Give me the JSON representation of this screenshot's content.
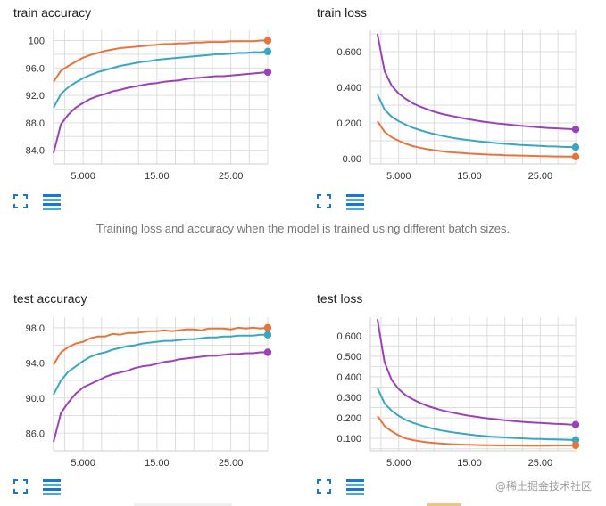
{
  "caption": "Training loss and accuracy when the model is trained using different batch sizes.",
  "watermark": "@稀土掘金技术社区",
  "icons": {
    "fullscreen": "fullscreen-icon",
    "menu": "menu-lines-icon"
  },
  "colors": {
    "orange": "#e8743b",
    "teal": "#3aa7c2",
    "purple": "#9c42b8",
    "grid": "#dddddd",
    "icon_blue": "#1976d2",
    "icon_teal": "#4aa9d9"
  },
  "chart_data": [
    {
      "id": "train-accuracy",
      "type": "line",
      "title": "train accuracy",
      "xlim": [
        1,
        30
      ],
      "ylim": [
        82,
        101.5
      ],
      "yticks": [
        100,
        96,
        92,
        88,
        84
      ],
      "ytick_labels": [
        "100",
        "96.0",
        "92.0",
        "88.0",
        "84.0"
      ],
      "xticks": [
        5,
        15,
        25
      ],
      "xtick_labels": [
        "5.000",
        "15.00",
        "25.00"
      ],
      "x": [
        1,
        2,
        3,
        4,
        5,
        6,
        7,
        8,
        9,
        10,
        11,
        12,
        13,
        14,
        15,
        16,
        17,
        18,
        19,
        20,
        21,
        22,
        23,
        24,
        25,
        26,
        27,
        28,
        29,
        30
      ],
      "series": [
        {
          "name": "orange",
          "color": "#e8743b",
          "values": [
            94.0,
            95.6,
            96.3,
            96.9,
            97.5,
            97.9,
            98.2,
            98.5,
            98.7,
            98.9,
            99.0,
            99.1,
            99.2,
            99.3,
            99.4,
            99.5,
            99.5,
            99.6,
            99.6,
            99.7,
            99.7,
            99.8,
            99.8,
            99.8,
            99.9,
            99.9,
            99.9,
            99.9,
            100.0,
            100.0
          ]
        },
        {
          "name": "teal",
          "color": "#3aa7c2",
          "values": [
            90.2,
            92.2,
            93.2,
            93.9,
            94.5,
            95.0,
            95.4,
            95.7,
            96.0,
            96.3,
            96.5,
            96.7,
            96.9,
            97.0,
            97.2,
            97.3,
            97.4,
            97.5,
            97.6,
            97.7,
            97.8,
            97.9,
            98.0,
            98.0,
            98.1,
            98.2,
            98.2,
            98.3,
            98.3,
            98.4
          ]
        },
        {
          "name": "purple",
          "color": "#9c42b8",
          "values": [
            83.6,
            87.8,
            89.2,
            90.2,
            90.9,
            91.5,
            91.9,
            92.2,
            92.6,
            92.8,
            93.1,
            93.3,
            93.5,
            93.7,
            93.8,
            94.0,
            94.1,
            94.2,
            94.4,
            94.5,
            94.6,
            94.7,
            94.8,
            94.8,
            94.9,
            95.0,
            95.1,
            95.2,
            95.3,
            95.4
          ]
        }
      ]
    },
    {
      "id": "train-loss",
      "type": "line",
      "title": "train loss",
      "xlim": [
        1,
        30
      ],
      "ylim": [
        -0.03,
        0.72
      ],
      "yticks": [
        0.6,
        0.4,
        0.2,
        0.0
      ],
      "ytick_labels": [
        "0.600",
        "0.400",
        "0.200",
        "0.00"
      ],
      "xticks": [
        5,
        15,
        25
      ],
      "xtick_labels": [
        "5.000",
        "15.00",
        "25.00"
      ],
      "x": [
        2,
        3,
        4,
        5,
        6,
        7,
        8,
        9,
        10,
        11,
        12,
        13,
        14,
        15,
        16,
        17,
        18,
        19,
        20,
        21,
        22,
        23,
        24,
        25,
        26,
        27,
        28,
        29,
        30
      ],
      "series": [
        {
          "name": "purple",
          "color": "#9c42b8",
          "values": [
            0.7,
            0.49,
            0.41,
            0.365,
            0.335,
            0.31,
            0.292,
            0.277,
            0.263,
            0.252,
            0.243,
            0.235,
            0.227,
            0.22,
            0.213,
            0.207,
            0.202,
            0.197,
            0.193,
            0.189,
            0.185,
            0.181,
            0.178,
            0.175,
            0.172,
            0.17,
            0.168,
            0.166,
            0.164
          ]
        },
        {
          "name": "teal",
          "color": "#3aa7c2",
          "values": [
            0.36,
            0.275,
            0.235,
            0.21,
            0.19,
            0.173,
            0.16,
            0.148,
            0.138,
            0.129,
            0.121,
            0.114,
            0.108,
            0.103,
            0.098,
            0.094,
            0.09,
            0.086,
            0.083,
            0.08,
            0.077,
            0.075,
            0.073,
            0.071,
            0.069,
            0.068,
            0.066,
            0.065,
            0.064
          ]
        },
        {
          "name": "orange",
          "color": "#e8743b",
          "values": [
            0.21,
            0.15,
            0.12,
            0.1,
            0.083,
            0.07,
            0.061,
            0.053,
            0.047,
            0.042,
            0.037,
            0.034,
            0.031,
            0.028,
            0.026,
            0.024,
            0.022,
            0.021,
            0.019,
            0.018,
            0.017,
            0.016,
            0.015,
            0.014,
            0.013,
            0.012,
            0.012,
            0.011,
            0.011
          ]
        }
      ]
    },
    {
      "id": "test-accuracy",
      "type": "line",
      "title": "test accuracy",
      "xlim": [
        1,
        30
      ],
      "ylim": [
        84,
        99.2
      ],
      "yticks": [
        98,
        94,
        90,
        86
      ],
      "ytick_labels": [
        "98.0",
        "94.0",
        "90.0",
        "86.0"
      ],
      "xticks": [
        5,
        15,
        25
      ],
      "xtick_labels": [
        "5.000",
        "15.00",
        "25.00"
      ],
      "x": [
        1,
        2,
        3,
        4,
        5,
        6,
        7,
        8,
        9,
        10,
        11,
        12,
        13,
        14,
        15,
        16,
        17,
        18,
        19,
        20,
        21,
        22,
        23,
        24,
        25,
        26,
        27,
        28,
        29,
        30
      ],
      "series": [
        {
          "name": "orange",
          "color": "#e8743b",
          "values": [
            93.8,
            95.2,
            95.8,
            96.2,
            96.4,
            96.8,
            97.0,
            97.0,
            97.3,
            97.2,
            97.4,
            97.4,
            97.5,
            97.6,
            97.6,
            97.7,
            97.6,
            97.7,
            97.8,
            97.8,
            97.7,
            97.9,
            97.9,
            97.9,
            97.8,
            98.0,
            97.9,
            98.0,
            97.9,
            98.0
          ]
        },
        {
          "name": "teal",
          "color": "#3aa7c2",
          "values": [
            90.4,
            92.0,
            93.0,
            93.6,
            94.2,
            94.7,
            95.0,
            95.2,
            95.5,
            95.7,
            95.9,
            96.0,
            96.2,
            96.3,
            96.4,
            96.5,
            96.5,
            96.6,
            96.7,
            96.7,
            96.8,
            96.9,
            96.9,
            97.0,
            97.0,
            97.1,
            97.1,
            97.1,
            97.2,
            97.2
          ]
        },
        {
          "name": "purple",
          "color": "#9c42b8",
          "values": [
            85.0,
            88.3,
            89.5,
            90.5,
            91.2,
            91.6,
            92.0,
            92.4,
            92.7,
            92.9,
            93.1,
            93.4,
            93.6,
            93.7,
            93.9,
            94.1,
            94.2,
            94.4,
            94.5,
            94.6,
            94.7,
            94.8,
            94.8,
            94.9,
            95.0,
            95.0,
            95.1,
            95.1,
            95.2,
            95.2
          ]
        }
      ]
    },
    {
      "id": "test-loss",
      "type": "line",
      "title": "test loss",
      "xlim": [
        1,
        30
      ],
      "ylim": [
        0.04,
        0.69
      ],
      "yticks": [
        0.6,
        0.5,
        0.4,
        0.3,
        0.2,
        0.1
      ],
      "ytick_labels": [
        "0.600",
        "0.500",
        "0.400",
        "0.300",
        "0.200",
        "0.100"
      ],
      "xticks": [
        5,
        15,
        25
      ],
      "xtick_labels": [
        "5.000",
        "15.00",
        "25.00"
      ],
      "x": [
        2,
        3,
        4,
        5,
        6,
        7,
        8,
        9,
        10,
        11,
        12,
        13,
        14,
        15,
        16,
        17,
        18,
        19,
        20,
        21,
        22,
        23,
        24,
        25,
        26,
        27,
        28,
        29,
        30
      ],
      "series": [
        {
          "name": "purple",
          "color": "#9c42b8",
          "values": [
            0.68,
            0.47,
            0.385,
            0.34,
            0.31,
            0.29,
            0.273,
            0.259,
            0.248,
            0.238,
            0.23,
            0.223,
            0.216,
            0.21,
            0.205,
            0.2,
            0.196,
            0.192,
            0.188,
            0.185,
            0.182,
            0.179,
            0.177,
            0.175,
            0.173,
            0.171,
            0.17,
            0.168,
            0.167
          ]
        },
        {
          "name": "teal",
          "color": "#3aa7c2",
          "values": [
            0.345,
            0.27,
            0.235,
            0.21,
            0.19,
            0.176,
            0.165,
            0.155,
            0.146,
            0.139,
            0.133,
            0.128,
            0.123,
            0.119,
            0.115,
            0.112,
            0.109,
            0.107,
            0.105,
            0.103,
            0.101,
            0.1,
            0.098,
            0.097,
            0.096,
            0.095,
            0.094,
            0.093,
            0.092
          ]
        },
        {
          "name": "orange",
          "color": "#e8743b",
          "values": [
            0.21,
            0.16,
            0.135,
            0.115,
            0.1,
            0.092,
            0.086,
            0.081,
            0.078,
            0.075,
            0.073,
            0.071,
            0.07,
            0.069,
            0.068,
            0.067,
            0.067,
            0.066,
            0.066,
            0.066,
            0.066,
            0.065,
            0.065,
            0.065,
            0.065,
            0.066,
            0.066,
            0.066,
            0.067
          ]
        }
      ]
    }
  ]
}
